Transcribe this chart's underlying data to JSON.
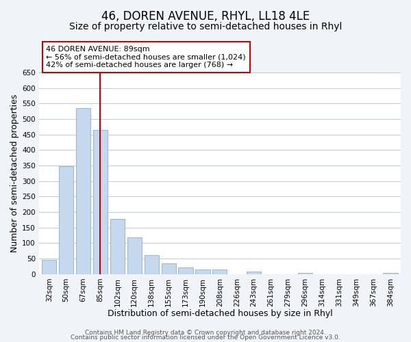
{
  "title": "46, DOREN AVENUE, RHYL, LL18 4LE",
  "subtitle": "Size of property relative to semi-detached houses in Rhyl",
  "xlabel": "Distribution of semi-detached houses by size in Rhyl",
  "ylabel": "Number of semi-detached properties",
  "bar_labels": [
    "32sqm",
    "50sqm",
    "67sqm",
    "85sqm",
    "102sqm",
    "120sqm",
    "138sqm",
    "155sqm",
    "173sqm",
    "190sqm",
    "208sqm",
    "226sqm",
    "243sqm",
    "261sqm",
    "279sqm",
    "296sqm",
    "314sqm",
    "331sqm",
    "349sqm",
    "367sqm",
    "384sqm"
  ],
  "bar_values": [
    46,
    348,
    535,
    465,
    178,
    118,
    62,
    35,
    22,
    14,
    14,
    0,
    8,
    0,
    0,
    4,
    0,
    0,
    0,
    0,
    5
  ],
  "bar_color": "#c5d8ed",
  "bar_edge_color": "#a0b8d0",
  "vline_x": 3,
  "vline_color": "#cc0000",
  "annotation_title": "46 DOREN AVENUE: 89sqm",
  "annotation_line1": "← 56% of semi-detached houses are smaller (1,024)",
  "annotation_line2": "42% of semi-detached houses are larger (768) →",
  "ylim": [
    0,
    650
  ],
  "yticks": [
    0,
    50,
    100,
    150,
    200,
    250,
    300,
    350,
    400,
    450,
    500,
    550,
    600,
    650
  ],
  "footer1": "Contains HM Land Registry data © Crown copyright and database right 2024.",
  "footer2": "Contains public sector information licensed under the Open Government Licence v3.0.",
  "bg_color": "#f0f4f8",
  "plot_bg_color": "#ffffff",
  "title_fontsize": 12,
  "subtitle_fontsize": 10,
  "axis_label_fontsize": 9,
  "tick_fontsize": 7.5,
  "footer_fontsize": 6.5
}
